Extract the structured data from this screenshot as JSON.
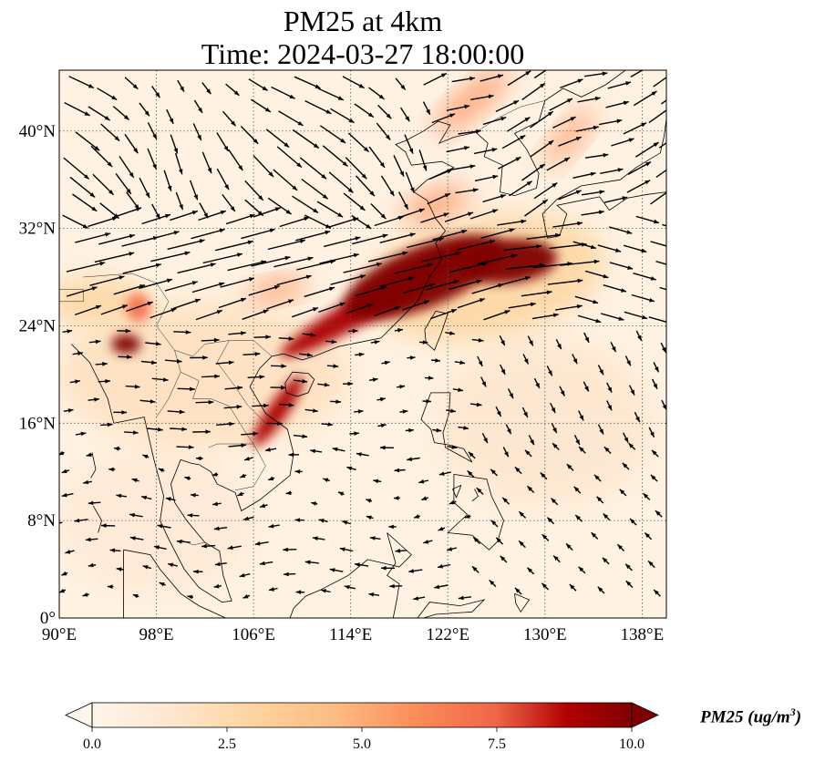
{
  "title": {
    "line1": "PM25 at 4km",
    "line2": "Time: 2024-03-27 18:00:00"
  },
  "map": {
    "lon_range": [
      90,
      140
    ],
    "lat_range": [
      0,
      45
    ],
    "x_ticks": [
      {
        "value": 90,
        "label": "90°E"
      },
      {
        "value": 98,
        "label": "98°E"
      },
      {
        "value": 106,
        "label": "106°E"
      },
      {
        "value": 114,
        "label": "114°E"
      },
      {
        "value": 122,
        "label": "122°E"
      },
      {
        "value": 130,
        "label": "130°E"
      },
      {
        "value": 138,
        "label": "138°E"
      }
    ],
    "y_ticks": [
      {
        "value": 0,
        "label": "0°"
      },
      {
        "value": 8,
        "label": "8°N"
      },
      {
        "value": 16,
        "label": "16°N"
      },
      {
        "value": 24,
        "label": "24°N"
      },
      {
        "value": 32,
        "label": "32°N"
      },
      {
        "value": 40,
        "label": "40°N"
      }
    ],
    "gridlines": true,
    "pm25_features": [
      {
        "lon": 120,
        "lat": 28,
        "rlon": 7,
        "rlat": 2.5,
        "angle": -22,
        "value": 10
      },
      {
        "lon": 127,
        "lat": 29.3,
        "rlon": 4,
        "rlat": 1.8,
        "angle": -5,
        "value": 10
      },
      {
        "lon": 116,
        "lat": 26,
        "rlon": 9,
        "rlat": 1.2,
        "angle": -30,
        "value": 9
      },
      {
        "lon": 108,
        "lat": 17,
        "rlon": 3.5,
        "rlat": 0.8,
        "angle": -55,
        "value": 9
      },
      {
        "lon": 95.5,
        "lat": 22.5,
        "rlon": 1.2,
        "rlat": 0.8,
        "angle": 0,
        "value": 10
      },
      {
        "lon": 96.5,
        "lat": 25.5,
        "rlon": 1,
        "rlat": 1.2,
        "angle": 0,
        "value": 7
      },
      {
        "lon": 124,
        "lat": 42.5,
        "rlon": 4,
        "rlat": 1,
        "angle": -40,
        "value": 6
      },
      {
        "lon": 132,
        "lat": 39.5,
        "rlon": 3,
        "rlat": 0.9,
        "angle": -50,
        "value": 5.5
      },
      {
        "lon": 121,
        "lat": 34,
        "rlon": 3,
        "rlat": 1,
        "angle": -20,
        "value": 6
      },
      {
        "lon": 108,
        "lat": 27,
        "rlon": 2.5,
        "rlat": 0.8,
        "angle": -10,
        "value": 6
      },
      {
        "lon": 125,
        "lat": 28,
        "rlon": 10,
        "rlat": 5,
        "angle": -10,
        "value": 3
      },
      {
        "lon": 102,
        "lat": 20,
        "rlon": 12,
        "rlat": 6,
        "angle": 0,
        "value": 2
      },
      {
        "lon": 93,
        "lat": 26,
        "rlon": 4,
        "rlat": 2,
        "angle": 0,
        "value": 3
      },
      {
        "lon": 130,
        "lat": 16,
        "rlon": 9,
        "rlat": 7,
        "angle": 0,
        "value": 1.5
      },
      {
        "lon": 98,
        "lat": 8,
        "rlon": 8,
        "rlat": 6,
        "angle": 0,
        "value": 1.2
      }
    ]
  },
  "colorbar": {
    "min": 0,
    "max": 10,
    "extend": "both",
    "ticks": [
      {
        "value": 0,
        "label": "0.0"
      },
      {
        "value": 2.5,
        "label": "2.5"
      },
      {
        "value": 5,
        "label": "5.0"
      },
      {
        "value": 7.5,
        "label": "7.5"
      },
      {
        "value": 10,
        "label": "10.0"
      }
    ],
    "label": "PM25 (ug/m",
    "label_sup": "3",
    "label_end": ")"
  }
}
